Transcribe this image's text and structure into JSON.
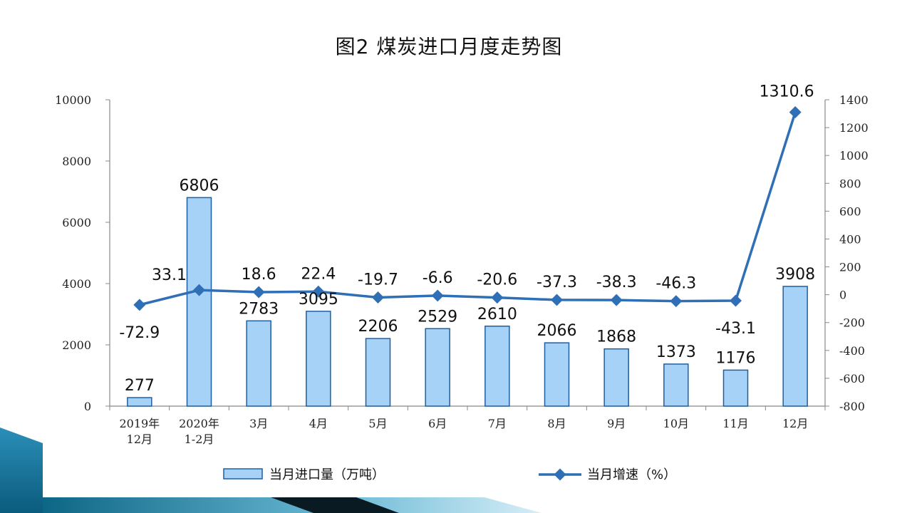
{
  "chart_data": {
    "type": "bar",
    "title": "图2 煤炭进口月度走势图",
    "categories": [
      [
        "2019年",
        "12月"
      ],
      [
        "2020年",
        "1-2月"
      ],
      [
        "3月"
      ],
      [
        "4月"
      ],
      [
        "5月"
      ],
      [
        "6月"
      ],
      [
        "7月"
      ],
      [
        "8月"
      ],
      [
        "9月"
      ],
      [
        "10月"
      ],
      [
        "11月"
      ],
      [
        "12月"
      ]
    ],
    "series": [
      {
        "name": "当月进口量（万吨）",
        "type": "bar",
        "axis": "left",
        "values": [
          277,
          6806,
          2783,
          3095,
          2206,
          2529,
          2610,
          2066,
          1868,
          1373,
          1176,
          3908
        ],
        "color": "#a6d2f7"
      },
      {
        "name": "当月增速（%）",
        "type": "line",
        "axis": "right",
        "values": [
          -72.9,
          33.1,
          18.6,
          22.4,
          -19.7,
          -6.6,
          -20.6,
          -37.3,
          -38.3,
          -46.3,
          -43.1,
          1310.6
        ],
        "color": "#2e6fb6"
      }
    ],
    "y_left": {
      "min": 0,
      "max": 10000,
      "ticks": [
        0,
        2000,
        4000,
        6000,
        8000,
        10000
      ]
    },
    "y_right": {
      "min": -800,
      "max": 1400,
      "ticks": [
        -800,
        -600,
        -400,
        -200,
        0,
        200,
        400,
        600,
        800,
        1000,
        1200,
        1400
      ]
    },
    "grid": false,
    "legend_position": "bottom"
  },
  "colors": {
    "bar_fill": "#a6d2f7",
    "bar_stroke": "#1f5fa0",
    "line": "#2e6fb6",
    "accent_dark": "#0d6685",
    "accent_light": "#3fa6cc"
  }
}
